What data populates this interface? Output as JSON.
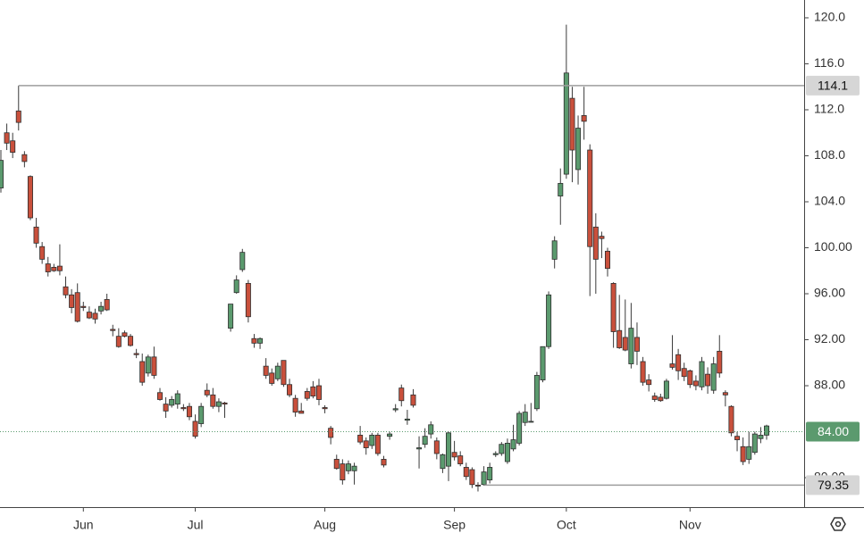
{
  "chart_data": {
    "type": "candlestick",
    "up_color": "#5b9a6e",
    "down_color": "#c9503c",
    "ylim": [
      77.44,
      121.55
    ],
    "yticks": [
      {
        "value": 80,
        "label": "80.00"
      },
      {
        "value": 88,
        "label": "88.00"
      },
      {
        "value": 92,
        "label": "92.00"
      },
      {
        "value": 96,
        "label": "96.00"
      },
      {
        "value": 100,
        "label": "100.00"
      },
      {
        "value": 104,
        "label": "104.0"
      },
      {
        "value": 108,
        "label": "108.0"
      },
      {
        "value": 112,
        "label": "112.0"
      },
      {
        "value": 116,
        "label": "116.0"
      },
      {
        "value": 120,
        "label": "120.0"
      }
    ],
    "price_lines": [
      {
        "value": 114.1,
        "label": "114.1",
        "color": "#9e9e9e",
        "style": "solid",
        "box_color": "#d6d6d6",
        "text_color": "#111111"
      },
      {
        "value": 79.35,
        "label": "79.35",
        "color": "#9e9e9e",
        "style": "solid",
        "box_color": "#d6d6d6",
        "text_color": "#111111"
      },
      {
        "value": 84,
        "label": "84.00",
        "color": "#5b9a6e",
        "style": "dotted",
        "box_color": "#5b9a6e",
        "text_color": "#ffffff"
      }
    ],
    "categories": [
      null,
      null,
      null,
      null,
      null,
      null,
      null,
      null,
      null,
      null,
      null,
      null,
      null,
      null,
      "Jun",
      null,
      null,
      null,
      null,
      null,
      null,
      null,
      null,
      null,
      null,
      null,
      null,
      null,
      null,
      null,
      null,
      null,
      null,
      "Jul",
      null,
      null,
      null,
      null,
      null,
      null,
      null,
      null,
      null,
      null,
      null,
      null,
      null,
      null,
      null,
      null,
      null,
      null,
      null,
      null,
      null,
      "Aug",
      null,
      null,
      null,
      null,
      null,
      null,
      null,
      null,
      null,
      null,
      null,
      null,
      null,
      null,
      null,
      null,
      null,
      null,
      null,
      null,
      null,
      "Sep",
      null,
      null,
      null,
      null,
      null,
      null,
      null,
      null,
      null,
      null,
      null,
      null,
      null,
      null,
      null,
      null,
      null,
      null,
      "Oct",
      null,
      null,
      null,
      null,
      null,
      null,
      null,
      null,
      null,
      null,
      null,
      null,
      null,
      null,
      null,
      null,
      null,
      null,
      null,
      null,
      "Nov",
      null,
      null,
      null,
      null,
      null,
      null,
      null,
      null,
      null,
      null,
      null,
      null,
      null
    ],
    "ohlc": [
      [
        105.2,
        108.5,
        104.8,
        107.6
      ],
      [
        110.0,
        110.8,
        108.5,
        109.1
      ],
      [
        109.3,
        110.0,
        107.8,
        108.3
      ],
      [
        111.9,
        114.1,
        110.2,
        110.9
      ],
      [
        108.1,
        108.4,
        107.0,
        107.5
      ],
      [
        106.2,
        106.3,
        102.4,
        102.6
      ],
      [
        101.8,
        102.6,
        100.0,
        100.4
      ],
      [
        100.1,
        100.5,
        98.6,
        99.0
      ],
      [
        98.6,
        99.2,
        97.5,
        97.9
      ],
      [
        98.3,
        98.6,
        97.9,
        98.0
      ],
      [
        98.4,
        100.3,
        97.6,
        98.0
      ],
      [
        96.6,
        97.5,
        95.6,
        95.9
      ],
      [
        95.9,
        96.4,
        94.3,
        94.8
      ],
      [
        96.1,
        96.9,
        93.5,
        93.6
      ],
      [
        94.9,
        95.3,
        94.5,
        94.8
      ],
      [
        94.4,
        94.9,
        93.8,
        93.9
      ],
      [
        94.3,
        94.7,
        93.4,
        93.8
      ],
      [
        94.5,
        95.3,
        94.2,
        94.9
      ],
      [
        95.5,
        96.0,
        94.5,
        94.6
      ],
      [
        92.9,
        93.3,
        92.3,
        92.8
      ],
      [
        92.3,
        93.0,
        91.3,
        91.4
      ],
      [
        92.6,
        92.8,
        92.2,
        92.3
      ],
      [
        92.3,
        92.5,
        91.4,
        91.5
      ],
      [
        90.8,
        91.2,
        90.4,
        90.7
      ],
      [
        90.1,
        90.8,
        88.0,
        88.3
      ],
      [
        89.1,
        90.7,
        88.8,
        90.5
      ],
      [
        90.5,
        91.4,
        88.6,
        88.9
      ],
      [
        87.4,
        87.8,
        86.7,
        86.8
      ],
      [
        86.4,
        87.0,
        85.2,
        85.8
      ],
      [
        86.3,
        87.1,
        86.1,
        86.8
      ],
      [
        86.4,
        87.6,
        86.0,
        87.3
      ],
      [
        86.1,
        86.4,
        85.8,
        86.0
      ],
      [
        86.2,
        86.5,
        85.0,
        85.3
      ],
      [
        84.9,
        85.5,
        83.4,
        83.6
      ],
      [
        84.7,
        86.5,
        84.4,
        86.2
      ],
      [
        87.6,
        88.2,
        87.0,
        87.2
      ],
      [
        87.2,
        87.8,
        86.0,
        86.2
      ],
      [
        86.2,
        86.9,
        85.7,
        86.6
      ],
      [
        86.5,
        86.6,
        85.2,
        86.4
      ],
      [
        93.0,
        95.1,
        92.7,
        95.1
      ],
      [
        96.1,
        97.6,
        96.0,
        97.2
      ],
      [
        98.1,
        99.9,
        97.9,
        99.6
      ],
      [
        96.9,
        97.2,
        93.5,
        94.0
      ],
      [
        92.1,
        92.5,
        91.3,
        91.7
      ],
      [
        91.7,
        92.2,
        91.2,
        92.1
      ],
      [
        89.7,
        90.4,
        88.6,
        88.9
      ],
      [
        89.1,
        89.5,
        88.0,
        88.2
      ],
      [
        88.6,
        90.0,
        88.4,
        89.7
      ],
      [
        90.2,
        90.2,
        87.9,
        88.1
      ],
      [
        88.1,
        88.6,
        87.0,
        87.2
      ],
      [
        86.9,
        87.2,
        85.3,
        85.7
      ],
      [
        85.8,
        86.5,
        85.6,
        85.6
      ],
      [
        87.5,
        87.8,
        86.7,
        86.9
      ],
      [
        87.9,
        88.4,
        86.9,
        87.1
      ],
      [
        88.0,
        88.6,
        86.3,
        86.8
      ],
      [
        86.1,
        86.3,
        85.6,
        86.0
      ],
      [
        84.3,
        84.5,
        82.9,
        83.5
      ],
      [
        81.6,
        82.0,
        80.7,
        80.8
      ],
      [
        81.2,
        81.6,
        79.4,
        79.8
      ],
      [
        80.6,
        81.5,
        80.3,
        81.2
      ],
      [
        80.6,
        81.3,
        79.4,
        81.0
      ],
      [
        83.7,
        84.5,
        82.9,
        83.1
      ],
      [
        83.2,
        83.5,
        82.0,
        82.6
      ],
      [
        82.8,
        83.9,
        82.5,
        83.7
      ],
      [
        83.7,
        83.9,
        81.9,
        82.1
      ],
      [
        81.6,
        81.9,
        80.9,
        81.1
      ],
      [
        83.6,
        84.0,
        83.3,
        83.8
      ],
      [
        85.9,
        86.4,
        85.7,
        86.0
      ],
      [
        87.8,
        88.1,
        86.2,
        86.7
      ],
      [
        85.0,
        85.9,
        84.6,
        85.1
      ],
      [
        87.2,
        87.7,
        86.1,
        86.3
      ],
      [
        82.5,
        83.6,
        80.8,
        82.6
      ],
      [
        82.9,
        84.3,
        82.6,
        83.6
      ],
      [
        83.8,
        84.9,
        83.4,
        84.6
      ],
      [
        83.2,
        83.5,
        81.6,
        82.1
      ],
      [
        80.8,
        82.1,
        80.4,
        82.0
      ],
      [
        81.0,
        84.0,
        79.7,
        83.9
      ],
      [
        82.2,
        83.2,
        81.5,
        81.8
      ],
      [
        81.9,
        82.3,
        81.0,
        81.2
      ],
      [
        80.9,
        81.3,
        79.8,
        80.1
      ],
      [
        80.7,
        80.9,
        79.1,
        79.4
      ],
      [
        79.35,
        79.6,
        78.8,
        79.3
      ],
      [
        79.4,
        81.0,
        79.3,
        80.5
      ],
      [
        79.8,
        81.3,
        79.5,
        80.9
      ],
      [
        82.0,
        82.3,
        81.8,
        82.1
      ],
      [
        82.1,
        83.1,
        81.9,
        82.9
      ],
      [
        81.4,
        83.4,
        81.2,
        83.0
      ],
      [
        82.5,
        84.6,
        82.3,
        83.3
      ],
      [
        83.0,
        85.8,
        82.8,
        85.6
      ],
      [
        84.8,
        86.4,
        84.5,
        85.7
      ],
      [
        84.9,
        86.5,
        84.8,
        84.9
      ],
      [
        86.0,
        89.2,
        85.8,
        88.9
      ],
      [
        88.5,
        91.4,
        88.3,
        91.4
      ],
      [
        91.4,
        96.2,
        91.2,
        95.9
      ],
      [
        99.0,
        101.0,
        98.2,
        100.6
      ],
      [
        104.5,
        106.9,
        102.0,
        105.6
      ],
      [
        106.4,
        119.4,
        106.0,
        115.2
      ],
      [
        113.0,
        114.0,
        105.7,
        108.5
      ],
      [
        106.8,
        111.5,
        105.5,
        110.4
      ],
      [
        111.5,
        114.0,
        109.4,
        111.0
      ],
      [
        108.5,
        109.0,
        95.8,
        100.1
      ],
      [
        101.8,
        103.0,
        96.0,
        99.0
      ],
      [
        101.0,
        101.4,
        99.1,
        100.8
      ],
      [
        99.7,
        100.0,
        97.5,
        98.2
      ],
      [
        96.9,
        97.0,
        91.3,
        92.7
      ],
      [
        92.8,
        95.9,
        91.2,
        91.3
      ],
      [
        92.2,
        95.5,
        91.0,
        91.1
      ],
      [
        89.9,
        95.2,
        89.5,
        93.0
      ],
      [
        92.2,
        93.5,
        89.8,
        91.0
      ],
      [
        90.1,
        90.5,
        88.0,
        88.3
      ],
      [
        88.5,
        89.0,
        87.5,
        88.1
      ],
      [
        87.1,
        87.4,
        86.6,
        86.8
      ],
      [
        87.0,
        87.3,
        86.6,
        86.7
      ],
      [
        86.9,
        88.6,
        86.8,
        88.4
      ],
      [
        89.9,
        92.4,
        89.4,
        89.6
      ],
      [
        90.7,
        91.2,
        88.5,
        89.3
      ],
      [
        89.5,
        90.0,
        88.4,
        88.8
      ],
      [
        89.3,
        89.4,
        87.8,
        88.1
      ],
      [
        88.4,
        88.9,
        87.6,
        88.0
      ],
      [
        87.9,
        90.5,
        87.6,
        90.1
      ],
      [
        89.0,
        89.6,
        87.3,
        88.0
      ],
      [
        87.6,
        90.5,
        87.3,
        89.9
      ],
      [
        91.0,
        92.4,
        88.7,
        89.1
      ],
      [
        87.4,
        87.6,
        86.2,
        87.2
      ],
      [
        86.2,
        86.3,
        83.6,
        83.9
      ],
      [
        83.6,
        84.0,
        82.3,
        83.3
      ],
      [
        82.7,
        83.5,
        81.1,
        81.4
      ],
      [
        81.6,
        84.0,
        81.2,
        82.7
      ],
      [
        82.2,
        84.0,
        82.0,
        83.8
      ],
      [
        83.4,
        84.4,
        83.0,
        83.7
      ],
      [
        83.7,
        84.6,
        83.3,
        84.5
      ]
    ]
  }
}
